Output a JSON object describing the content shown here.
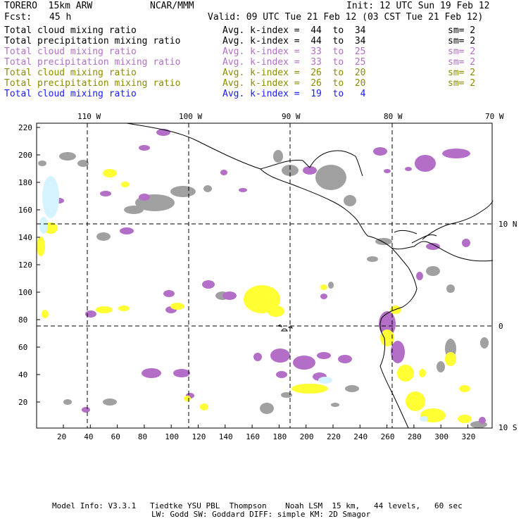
{
  "header": {
    "model": "TORERO  15km ARW",
    "org": "NCAR/MMM",
    "init": "Init: 12 UTC Sun 19 Feb 12",
    "fcst_label": "Fcst:",
    "fcst_value": "45 h",
    "valid": "Valid: 09 UTC Tue 21 Feb 12 (03 CST Tue 21 Feb 12)"
  },
  "legend": [
    {
      "field": "Total cloud mixing ratio",
      "kindex": "Avg. k-index =  44  to  34",
      "sm": "sm= 2",
      "color": "#000000"
    },
    {
      "field": "Total precipitation mixing ratio",
      "kindex": "Avg. k-index =  44  to  34",
      "sm": "sm= 2",
      "color": "#000000"
    },
    {
      "field": "Total cloud mixing ratio",
      "kindex": "Avg. k-index =  33  to  25",
      "sm": "sm= 2",
      "color": "#b36fc8"
    },
    {
      "field": "Total precipitation mixing ratio",
      "kindex": "Avg. k-index =  33  to  25",
      "sm": "sm= 2",
      "color": "#b36fc8"
    },
    {
      "field": "Total cloud mixing ratio",
      "kindex": "Avg. k-index =  26  to  20",
      "sm": "sm= 2",
      "color": "#8c8c00"
    },
    {
      "field": "Total precipitation mixing ratio",
      "kindex": "Avg. k-index =  26  to  20",
      "sm": "sm= 2",
      "color": "#8c8c00"
    },
    {
      "field": "Total cloud mixing ratio",
      "kindex": "Avg. k-index =  19  to   4",
      "sm": "",
      "color": "#1a1aff"
    }
  ],
  "map": {
    "lon_labels": [
      "110 W",
      "100 W",
      "90 W",
      "80 W",
      "70 W"
    ],
    "lat_labels": [
      "10 N",
      "0",
      "10 S"
    ],
    "y_ticks": [
      "220",
      "200",
      "180",
      "160",
      "140",
      "120",
      "100",
      "80",
      "60",
      "40",
      "20"
    ],
    "x_ticks": [
      "20",
      "40",
      "60",
      "80",
      "100",
      "120",
      "140",
      "160",
      "180",
      "200",
      "220",
      "240",
      "260",
      "280",
      "300",
      "320"
    ],
    "colors": {
      "gray": "#a0a0a0",
      "purple": "#b36fc8",
      "yellow": "#ffff33",
      "cyan": "#d4f3ff"
    }
  },
  "footer": {
    "line1": "Model Info: V3.3.1   Tiedtke YSU PBL  Thompson    Noah LSM  15 km,   44 levels,   60 sec",
    "line2": "LW: Godd SW: Goddard DIFF: simple KM: 2D Smagor"
  }
}
